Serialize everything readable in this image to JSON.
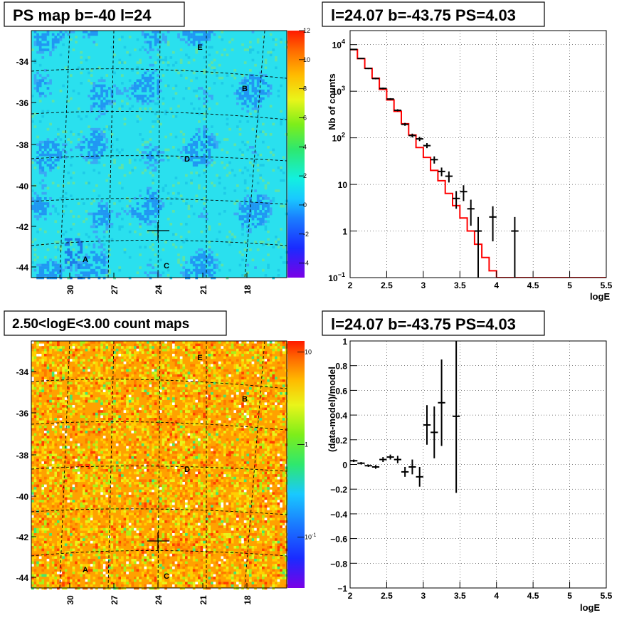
{
  "titles": {
    "tl": "PS map b=-40 l=24",
    "tr": "l=24.07 b=-43.75 PS=4.03",
    "bl": "2.50<logE<3.00 count maps",
    "br": "l=24.07 b=-43.75 PS=4.03"
  },
  "colors": {
    "model_line": "#ff0000",
    "data_marker": "#000000",
    "grid": "#000000",
    "map_tl_base": "#22ddee",
    "map_bl_base": "#ff9900"
  },
  "chart_data": [
    {
      "type": "heatmap",
      "title": "PS map b=-40 l=24",
      "x_ticks": [
        "30",
        "27",
        "24",
        "21",
        "18"
      ],
      "y_ticks": [
        "-34",
        "-36",
        "-38",
        "-40",
        "-42",
        "-44"
      ],
      "colorbar_ticks": [
        "12",
        "10",
        "8",
        "6",
        "4",
        "2",
        "0",
        "-2",
        "-4"
      ],
      "colorbar_range": [
        -5,
        12
      ],
      "point_labels": [
        "E",
        "B",
        "D",
        "A",
        "C"
      ],
      "marker": "cross"
    },
    {
      "type": "line",
      "title": "l=24.07 b=-43.75 PS=4.03",
      "xlabel": "logE",
      "ylabel": "Nb of counts",
      "y_scale": "log",
      "xlim": [
        2,
        5.5
      ],
      "ylim": [
        0.1,
        20000
      ],
      "x_ticks": [
        "2",
        "2.5",
        "3",
        "3.5",
        "4",
        "4.5",
        "5",
        "5.5"
      ],
      "y_ticks": [
        {
          "value": 0.1,
          "base": "10",
          "exp": "−1"
        },
        {
          "value": 1,
          "base": "1",
          "exp": ""
        },
        {
          "value": 10,
          "base": "10",
          "exp": ""
        },
        {
          "value": 100,
          "base": "10",
          "exp": "2"
        },
        {
          "value": 1000,
          "base": "10",
          "exp": "3"
        },
        {
          "value": 10000,
          "base": "10",
          "exp": "4"
        }
      ],
      "grid": true,
      "model_steps": [
        {
          "x0": 2.0,
          "x1": 2.1,
          "y": 7800
        },
        {
          "x0": 2.1,
          "x1": 2.2,
          "y": 5000
        },
        {
          "x0": 2.2,
          "x1": 2.3,
          "y": 3100
        },
        {
          "x0": 2.3,
          "x1": 2.4,
          "y": 1900
        },
        {
          "x0": 2.4,
          "x1": 2.5,
          "y": 1100
        },
        {
          "x0": 2.5,
          "x1": 2.6,
          "y": 650
        },
        {
          "x0": 2.6,
          "x1": 2.7,
          "y": 370
        },
        {
          "x0": 2.7,
          "x1": 2.8,
          "y": 200
        },
        {
          "x0": 2.8,
          "x1": 2.9,
          "y": 115
        },
        {
          "x0": 2.9,
          "x1": 3.0,
          "y": 62
        },
        {
          "x0": 3.0,
          "x1": 3.1,
          "y": 38
        },
        {
          "x0": 3.1,
          "x1": 3.2,
          "y": 20
        },
        {
          "x0": 3.2,
          "x1": 3.3,
          "y": 12
        },
        {
          "x0": 3.3,
          "x1": 3.4,
          "y": 6.4
        },
        {
          "x0": 3.4,
          "x1": 3.5,
          "y": 3.5
        },
        {
          "x0": 3.5,
          "x1": 3.6,
          "y": 1.9
        },
        {
          "x0": 3.6,
          "x1": 3.7,
          "y": 1.0
        },
        {
          "x0": 3.7,
          "x1": 3.8,
          "y": 0.52
        },
        {
          "x0": 3.8,
          "x1": 3.9,
          "y": 0.27
        },
        {
          "x0": 3.9,
          "x1": 4.0,
          "y": 0.14
        },
        {
          "x0": 4.0,
          "x1": 5.5,
          "y": 0.1
        }
      ],
      "data_points": [
        {
          "x": 2.05,
          "y": 7900,
          "lo": 7700,
          "hi": 8100
        },
        {
          "x": 2.15,
          "y": 5050,
          "lo": 4900,
          "hi": 5200
        },
        {
          "x": 2.25,
          "y": 3080,
          "lo": 2980,
          "hi": 3180
        },
        {
          "x": 2.35,
          "y": 1870,
          "lo": 1800,
          "hi": 1950
        },
        {
          "x": 2.45,
          "y": 1150,
          "lo": 1100,
          "hi": 1200
        },
        {
          "x": 2.55,
          "y": 680,
          "lo": 650,
          "hi": 710
        },
        {
          "x": 2.65,
          "y": 390,
          "lo": 370,
          "hi": 410
        },
        {
          "x": 2.75,
          "y": 195,
          "lo": 181,
          "hi": 209
        },
        {
          "x": 2.85,
          "y": 112,
          "lo": 102,
          "hi": 123
        },
        {
          "x": 2.95,
          "y": 95,
          "lo": 85,
          "hi": 105
        },
        {
          "x": 3.05,
          "y": 68,
          "lo": 60,
          "hi": 77
        },
        {
          "x": 3.15,
          "y": 34,
          "lo": 28,
          "hi": 40
        },
        {
          "x": 3.25,
          "y": 19,
          "lo": 15,
          "hi": 23
        },
        {
          "x": 3.35,
          "y": 15,
          "lo": 11,
          "hi": 19
        },
        {
          "x": 3.45,
          "y": 5,
          "lo": 3,
          "hi": 7.2
        },
        {
          "x": 3.55,
          "y": 7,
          "lo": 4.4,
          "hi": 9.6
        },
        {
          "x": 3.65,
          "y": 3,
          "lo": 1.3,
          "hi": 4.7
        },
        {
          "x": 3.75,
          "y": 1,
          "lo": 0.1,
          "hi": 2
        },
        {
          "x": 3.95,
          "y": 2,
          "lo": 0.6,
          "hi": 3.4
        },
        {
          "x": 4.25,
          "y": 1,
          "lo": 0.1,
          "hi": 2
        }
      ]
    },
    {
      "type": "heatmap",
      "title": "2.50<logE<3.00 count maps",
      "x_ticks": [
        "30",
        "27",
        "24",
        "21",
        "18"
      ],
      "y_ticks": [
        "-34",
        "-36",
        "-38",
        "-40",
        "-42",
        "-44"
      ],
      "colorbar_ticks": [
        {
          "value": 10,
          "base": "10",
          "exp": ""
        },
        {
          "value": 1,
          "base": "1",
          "exp": ""
        },
        {
          "value": 0.1,
          "base": "10",
          "exp": "-1"
        }
      ],
      "colorbar_scale": "log",
      "point_labels": [
        "E",
        "B",
        "D",
        "A",
        "C"
      ],
      "marker": "cross"
    },
    {
      "type": "scatter",
      "title": "l=24.07 b=-43.75 PS=4.03",
      "xlabel": "logE",
      "ylabel": "(data-model)/model",
      "xlim": [
        2,
        5.5
      ],
      "ylim": [
        -1,
        1
      ],
      "x_ticks": [
        "2",
        "2.5",
        "3",
        "3.5",
        "4",
        "4.5",
        "5",
        "5.5"
      ],
      "y_ticks": [
        "1",
        "0.8",
        "0.6",
        "0.4",
        "0.2",
        "0",
        "−0.2",
        "−0.4",
        "−0.6",
        "−0.8",
        "−1"
      ],
      "grid": true,
      "data_points": [
        {
          "x": 2.05,
          "y": 0.03,
          "err": 0.01
        },
        {
          "x": 2.15,
          "y": 0.01,
          "err": 0.01
        },
        {
          "x": 2.25,
          "y": -0.01,
          "err": 0.01
        },
        {
          "x": 2.35,
          "y": -0.02,
          "err": 0.015
        },
        {
          "x": 2.45,
          "y": 0.04,
          "err": 0.02
        },
        {
          "x": 2.55,
          "y": 0.06,
          "err": 0.02
        },
        {
          "x": 2.65,
          "y": 0.04,
          "err": 0.03
        },
        {
          "x": 2.75,
          "y": -0.06,
          "err": 0.04
        },
        {
          "x": 2.85,
          "y": -0.02,
          "err": 0.06
        },
        {
          "x": 2.95,
          "y": -0.1,
          "err": 0.08
        },
        {
          "x": 3.05,
          "y": 0.32,
          "err": 0.16
        },
        {
          "x": 3.15,
          "y": 0.26,
          "err": 0.21
        },
        {
          "x": 3.25,
          "y": 0.5,
          "err": 0.35
        },
        {
          "x": 3.45,
          "y": 0.39,
          "err": 0.62
        }
      ]
    }
  ]
}
